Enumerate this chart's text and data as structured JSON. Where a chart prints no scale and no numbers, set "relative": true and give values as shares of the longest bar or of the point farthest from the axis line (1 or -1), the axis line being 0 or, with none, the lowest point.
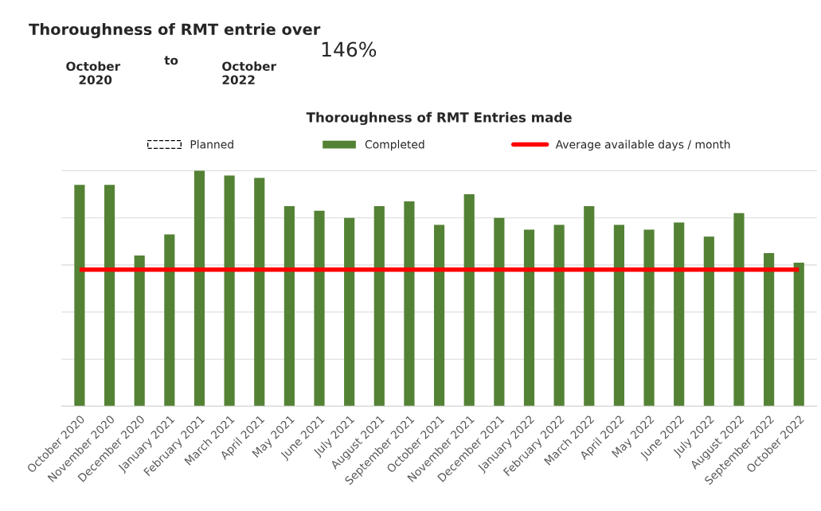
{
  "chart_data": {
    "type": "bar",
    "title": "Thoroughness of RMT Entries made",
    "annotations": [
      "Thoroughness of RMT entrie over",
      "October\n   2020",
      "to",
      "October\n2022",
      "146%"
    ],
    "categories": [
      "October 2020",
      "November 2020",
      "December 2020",
      "January 2021",
      "February 2021",
      "March 2021",
      "April 2021",
      "May 2021",
      "June 2021",
      "July 2021",
      "August 2021",
      "September 2021",
      "October 2021",
      "November 2021",
      "December 2021",
      "January 2022",
      "February 2022",
      "March 2022",
      "April 2022",
      "May 2022",
      "June 2022",
      "July 2022",
      "August 2022",
      "September 2022",
      "October 2022"
    ],
    "relative": true,
    "series": [
      {
        "name": "Planned",
        "color": "#000000",
        "line_style": "dashed",
        "values": [
          null,
          null,
          null,
          null,
          null,
          null,
          null,
          null,
          null,
          null,
          null,
          null,
          null,
          null,
          null,
          null,
          null,
          null,
          null,
          null,
          null,
          null,
          null,
          null,
          null
        ]
      },
      {
        "name": "Completed",
        "color": "#548235",
        "values": [
          0.94,
          0.94,
          0.64,
          0.73,
          1,
          0.98,
          0.97,
          0.85,
          0.83,
          0.8,
          0.85,
          0.87,
          0.77,
          0.9,
          0.8,
          0.75,
          0.77,
          0.85,
          0.77,
          0.75,
          0.78,
          0.72,
          0.82,
          0.65,
          0.61
        ]
      }
    ],
    "ref_lines": [
      {
        "axis": "y",
        "value": 0.58,
        "label": "Average available days / month",
        "color": "#ff0000"
      }
    ],
    "grid": "y",
    "legend": "top"
  }
}
